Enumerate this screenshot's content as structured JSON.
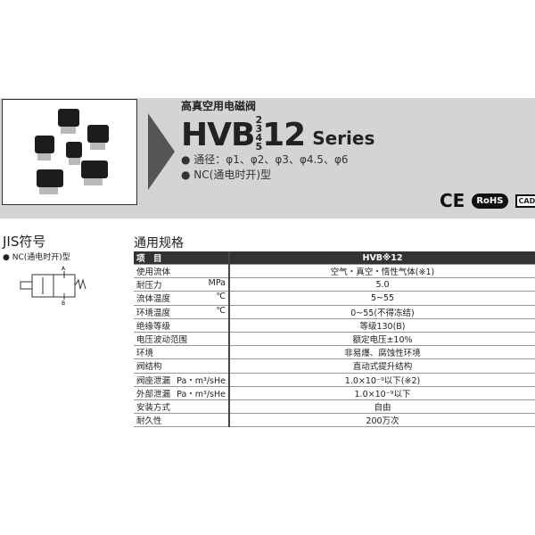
{
  "header": {
    "subtitle": "高真空用电磁阀",
    "model_prefix": "HVB",
    "model_variants": [
      "2",
      "3",
      "4",
      "5"
    ],
    "model_suffix": "12",
    "series": "Series",
    "features": [
      "● 通径：φ1、φ2、φ3、φ4.5、φ6",
      "● NC(通电时开)型"
    ],
    "logos": {
      "ce": "CE",
      "rohs": "RoHS",
      "cad": "CAD"
    }
  },
  "jis": {
    "title": "JIS符号",
    "type": "● NC(通电时开)型",
    "port_a": "A",
    "port_b": "B"
  },
  "specs": {
    "title": "通用规格",
    "header": [
      "项　目",
      "HVB※12"
    ],
    "rows": [
      {
        "item": "使用流体",
        "unit": "",
        "value": "空气・真空・惰性气体(※1)"
      },
      {
        "item": "耐压力",
        "unit": "MPa",
        "value": "5.0"
      },
      {
        "item": "流体温度",
        "unit": "℃",
        "value": "5~55"
      },
      {
        "item": "环境温度",
        "unit": "℃",
        "value": "0~55(不得冻结)"
      },
      {
        "item": "绝缘等级",
        "unit": "",
        "value": "等级130(B)"
      },
      {
        "item": "电压波动范围",
        "unit": "",
        "value": "额定电压±10%"
      },
      {
        "item": "环境",
        "unit": "",
        "value": "非易爆、腐蚀性环境"
      },
      {
        "item": "阀结构",
        "unit": "",
        "value": "直动式提升结构"
      },
      {
        "item": "阀座泄漏",
        "unit": "Pa・m³/sHe",
        "value": "1.0×10⁻⁹以下(※2)"
      },
      {
        "item": "外部泄漏",
        "unit": "Pa・m³/sHe",
        "value": "1.0×10⁻⁹以下"
      },
      {
        "item": "安装方式",
        "unit": "",
        "value": "自由"
      },
      {
        "item": "耐久性",
        "unit": "",
        "value": "200万次"
      }
    ]
  }
}
